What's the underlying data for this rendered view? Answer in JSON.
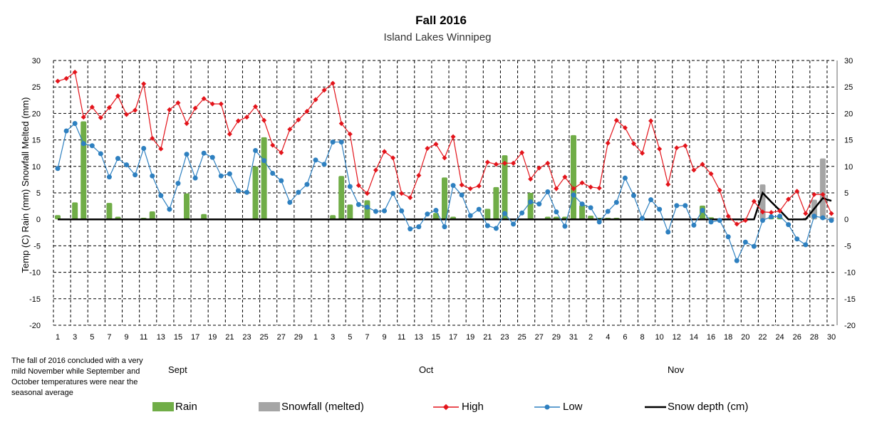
{
  "chart_data": {
    "type": "bar+line",
    "title": "Fall  2016",
    "subtitle": "Island Lakes Winnipeg",
    "ylabel": "Temp (C) Rain (mm) Snowfall Melted (mm)",
    "ylim": [
      -20,
      30
    ],
    "yticks": [
      30,
      25,
      20,
      15,
      10,
      5,
      0,
      -5,
      -10,
      -15,
      -20
    ],
    "grid": true,
    "legend_position": "bottom",
    "months": [
      {
        "name": "Sept",
        "days": 30
      },
      {
        "name": "Oct",
        "days": 31
      },
      {
        "name": "Nov",
        "days": 30
      }
    ],
    "month_labels": [
      "Sept",
      "Oct",
      "Nov"
    ],
    "note": "The fall of 2016 concluded with a very mild November while September and October temperatures were near the seasonal average",
    "colors": {
      "rain": "#70ad47",
      "snow": "#a5a5a5",
      "high": "#e3141b",
      "low": "#2e80c0",
      "depth": "#000000"
    },
    "series": [
      {
        "name": "Rain",
        "type": "bar",
        "values": [
          0.8,
          0,
          3.2,
          18.5,
          0,
          0,
          3.1,
          0.5,
          0,
          0,
          0.3,
          1.5,
          0,
          0,
          0,
          4.9,
          0,
          1.0,
          0,
          0,
          0,
          0,
          0,
          10.0,
          15.5,
          0,
          0,
          0,
          0,
          0,
          0,
          0,
          0.8,
          8.2,
          2.8,
          0,
          3.6,
          0,
          0,
          0,
          0,
          0,
          0,
          0,
          1.2,
          7.9,
          0.5,
          0,
          0,
          0,
          2.0,
          6.1,
          12.1,
          0,
          0,
          5.0,
          0,
          0.5,
          0.5,
          0.5,
          15.9,
          2.7,
          0.7,
          0.3,
          0.3,
          0.3,
          0,
          0,
          0.3,
          0,
          0,
          0,
          0,
          0,
          0,
          2.6,
          0.4,
          0,
          0,
          0,
          0,
          0,
          1.5,
          0.5,
          0.5,
          0,
          0,
          0,
          2.0,
          0.3,
          0
        ]
      },
      {
        "name": "Snowfall (melted)",
        "type": "bar",
        "values": [
          0,
          0,
          0,
          0,
          0,
          0,
          0,
          0,
          0,
          0,
          0,
          0,
          0,
          0,
          0,
          0,
          0,
          0,
          0,
          0,
          0,
          0,
          0,
          0,
          0,
          0,
          0,
          0,
          0,
          0,
          0,
          0,
          0,
          0,
          0,
          0,
          0,
          0,
          0,
          0,
          0,
          0,
          0,
          0,
          0,
          0,
          0,
          0,
          0,
          0,
          0,
          0,
          0,
          0,
          0,
          0,
          0,
          0,
          0,
          0,
          0,
          0,
          0,
          0,
          0,
          0,
          0,
          0,
          0,
          0,
          0,
          0,
          0,
          0,
          0,
          0,
          0,
          0,
          0,
          0,
          0,
          0,
          6.6,
          0,
          0,
          0,
          0,
          0.3,
          3.7,
          11.5,
          0.4
        ]
      },
      {
        "name": "High",
        "type": "line",
        "values": [
          26.1,
          26.6,
          27.8,
          19.3,
          21.2,
          19.2,
          21.1,
          23.3,
          19.8,
          20.6,
          25.6,
          15.3,
          13.3,
          20.7,
          22.0,
          18.1,
          21.0,
          22.8,
          21.8,
          21.8,
          16.1,
          18.6,
          19.3,
          21.3,
          18.7,
          14.0,
          12.6,
          17.0,
          18.8,
          20.4,
          22.6,
          24.4,
          25.7,
          18.1,
          16.1,
          6.4,
          4.9,
          9.3,
          12.8,
          11.6,
          4.9,
          4.1,
          8.3,
          13.4,
          14.2,
          11.6,
          15.6,
          6.5,
          5.8,
          6.3,
          10.8,
          10.4,
          10.6,
          10.6,
          12.6,
          7.6,
          9.7,
          10.6,
          5.8,
          8.0,
          5.8,
          6.9,
          6.1,
          5.9,
          14.4,
          18.7,
          17.3,
          14.3,
          12.5,
          18.6,
          13.3,
          6.6,
          13.5,
          13.9,
          9.3,
          10.4,
          8.6,
          5.5,
          0.6,
          -0.9,
          -0.2,
          3.4,
          1.4,
          1.3,
          1.6,
          3.8,
          5.3,
          1.1,
          4.7,
          4.7,
          1.1
        ]
      },
      {
        "name": "Low",
        "type": "line",
        "values": [
          9.6,
          16.7,
          18.1,
          14.3,
          13.9,
          12.4,
          8.0,
          11.5,
          10.3,
          8.4,
          13.4,
          8.2,
          4.5,
          1.9,
          6.8,
          12.3,
          7.8,
          12.5,
          11.7,
          8.2,
          8.6,
          5.4,
          5.1,
          13.0,
          11.1,
          8.7,
          7.3,
          3.2,
          5.1,
          6.6,
          11.2,
          10.4,
          14.6,
          14.6,
          6.2,
          2.8,
          2.3,
          1.5,
          1.6,
          4.9,
          1.6,
          -1.8,
          -1.4,
          1.0,
          1.7,
          -1.4,
          6.4,
          4.6,
          0.7,
          1.9,
          -1.2,
          -1.7,
          1.1,
          -0.9,
          1.2,
          3.3,
          2.9,
          5.2,
          1.4,
          -1.3,
          4.6,
          2.9,
          2.2,
          -0.5,
          1.5,
          3.2,
          7.8,
          4.5,
          0.2,
          3.7,
          1.9,
          -2.4,
          2.6,
          2.6,
          -1.1,
          1.7,
          -0.5,
          -0.2,
          -3.3,
          -7.8,
          -4.3,
          -5.1,
          -0.2,
          0.5,
          0.6,
          -1.0,
          -3.7,
          -4.8,
          0.6,
          0.3,
          -0.2
        ]
      },
      {
        "name": "Snow depth (cm)",
        "type": "line",
        "values": [
          0,
          0,
          0,
          0,
          0,
          0,
          0,
          0,
          0,
          0,
          0,
          0,
          0,
          0,
          0,
          0,
          0,
          0,
          0,
          0,
          0,
          0,
          0,
          0,
          0,
          0,
          0,
          0,
          0,
          0,
          0,
          0,
          0,
          0,
          0,
          0,
          0,
          0,
          0,
          0,
          0,
          0,
          0,
          0,
          0,
          0,
          0,
          0,
          0,
          0,
          0,
          0,
          0,
          0,
          0,
          0,
          0,
          0,
          0,
          0,
          0,
          0,
          0,
          0,
          0,
          0,
          0,
          0,
          0,
          0,
          0,
          0,
          0,
          0,
          0,
          0,
          0,
          0,
          0,
          0,
          0,
          0,
          5.0,
          3.3,
          1.7,
          0,
          0,
          0,
          2.0,
          4.0,
          3.5
        ]
      }
    ]
  }
}
